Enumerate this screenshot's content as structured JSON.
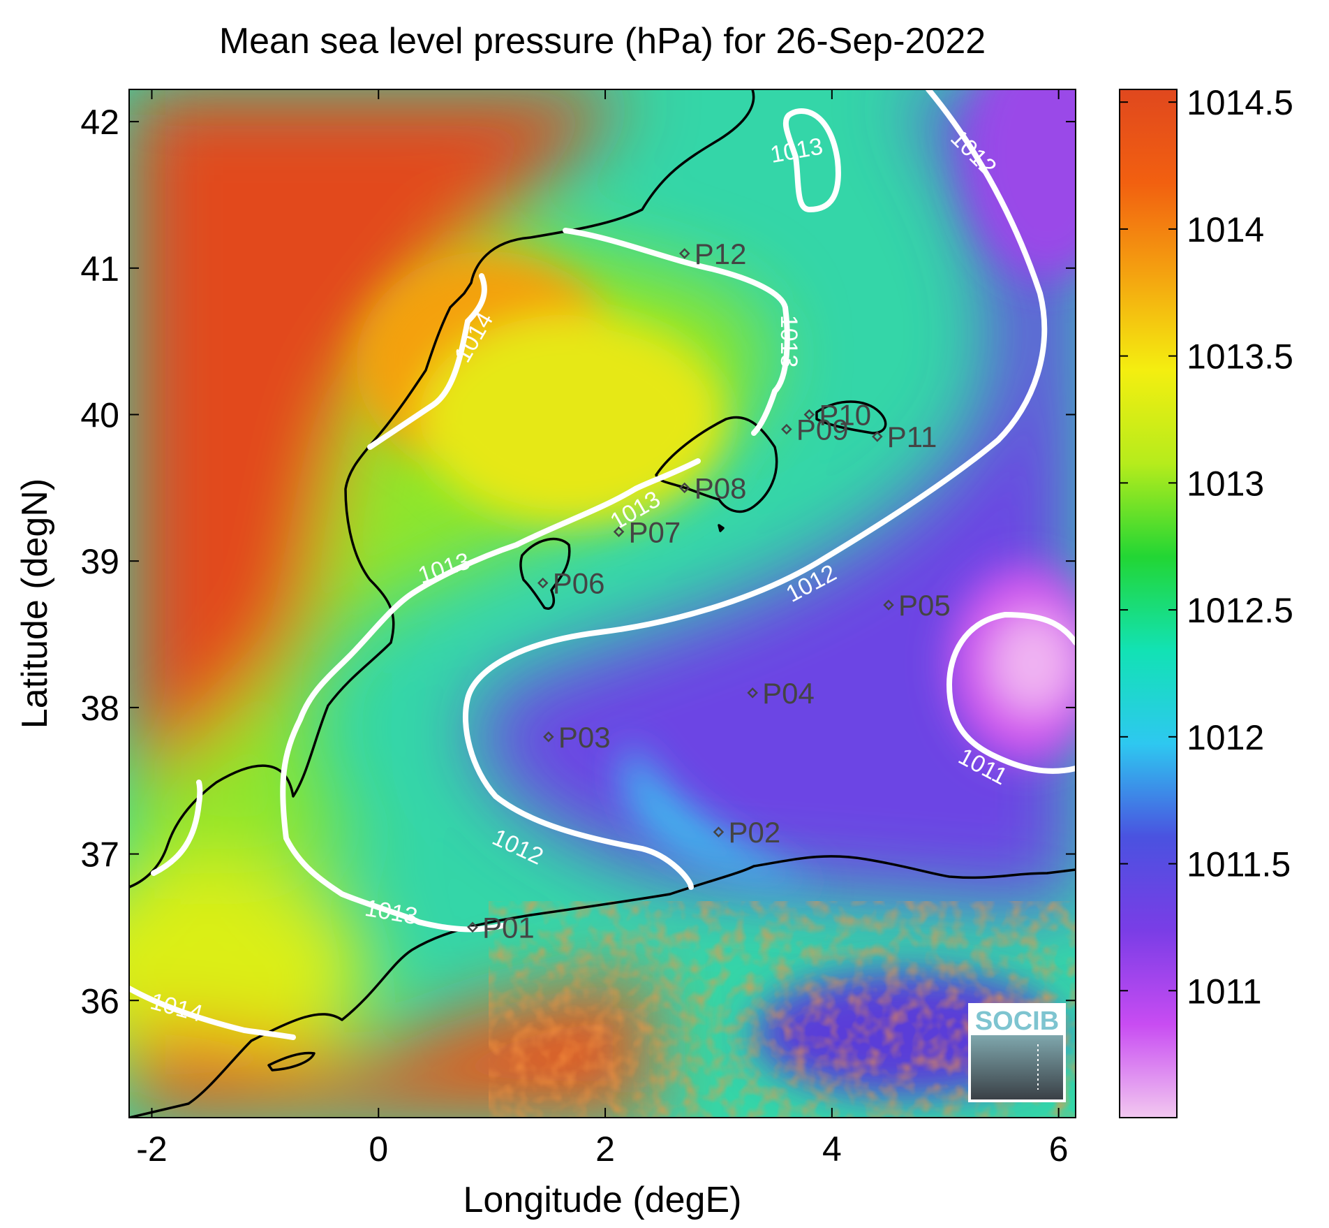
{
  "chart_data": {
    "type": "heatmap",
    "title": "Mean sea level pressure (hPa) for 26-Sep-2022",
    "xlabel": "Longitude (degE)",
    "ylabel": "Latitude (degN)",
    "xlim": [
      -2.2,
      6.15
    ],
    "ylim": [
      35.2,
      42.22
    ],
    "x_ticks": [
      -2,
      0,
      2,
      4,
      6
    ],
    "y_ticks": [
      36,
      37,
      38,
      39,
      40,
      41,
      42
    ],
    "x_tick_labels": [
      "-2",
      "0",
      "2",
      "4",
      "6"
    ],
    "y_tick_labels": [
      "36",
      "37",
      "38",
      "39",
      "40",
      "41",
      "42"
    ],
    "grid": false,
    "colorbar": {
      "label_position": "right",
      "range": [
        1010.5,
        1014.55
      ],
      "ticks": [
        1011,
        1011.5,
        1012,
        1012.5,
        1013,
        1013.5,
        1014,
        1014.5
      ],
      "tick_labels": [
        "1011",
        "1011.5",
        "1012",
        "1012.5",
        "1013",
        "1013.5",
        "1014",
        "1014.5"
      ],
      "colors": [
        "#f2c8f0",
        "#c84cf2",
        "#7a3de6",
        "#4a52e0",
        "#2ec8f0",
        "#12e2b4",
        "#22d634",
        "#b6ec1c",
        "#f4ee10",
        "#f4a410",
        "#f26010",
        "#e0481e"
      ]
    },
    "stations": [
      {
        "name": "P01",
        "lon": 0.83,
        "lat": 36.5
      },
      {
        "name": "P02",
        "lon": 3.0,
        "lat": 37.15
      },
      {
        "name": "P03",
        "lon": 1.5,
        "lat": 37.8
      },
      {
        "name": "P04",
        "lon": 3.3,
        "lat": 38.1
      },
      {
        "name": "P05",
        "lon": 4.5,
        "lat": 38.7
      },
      {
        "name": "P06",
        "lon": 1.45,
        "lat": 38.85
      },
      {
        "name": "P07",
        "lon": 2.12,
        "lat": 39.2
      },
      {
        "name": "P08",
        "lon": 2.7,
        "lat": 39.5
      },
      {
        "name": "P09",
        "lon": 3.6,
        "lat": 39.9
      },
      {
        "name": "P10",
        "lon": 3.8,
        "lat": 40.0
      },
      {
        "name": "P11",
        "lon": 4.4,
        "lat": 39.85
      },
      {
        "name": "P12",
        "lon": 2.7,
        "lat": 41.1
      }
    ],
    "contour_labels": [
      {
        "text": "1013",
        "lon": 3.7,
        "lat": 41.75,
        "angle": -10
      },
      {
        "text": "1012",
        "lon": 5.2,
        "lat": 41.75,
        "angle": 45
      },
      {
        "text": "1014",
        "lon": 0.9,
        "lat": 40.5,
        "angle": -60
      },
      {
        "text": "1013",
        "lon": 3.55,
        "lat": 40.5,
        "angle": 90
      },
      {
        "text": "1013",
        "lon": 2.3,
        "lat": 39.3,
        "angle": -30
      },
      {
        "text": "1013",
        "lon": 0.6,
        "lat": 38.9,
        "angle": -18
      },
      {
        "text": "1012",
        "lon": 3.85,
        "lat": 38.8,
        "angle": -28
      },
      {
        "text": "1011",
        "lon": 5.3,
        "lat": 37.55,
        "angle": 28
      },
      {
        "text": "1012",
        "lon": 1.2,
        "lat": 37.0,
        "angle": 25
      },
      {
        "text": "1013",
        "lon": 0.1,
        "lat": 36.55,
        "angle": 10
      },
      {
        "text": "1014",
        "lon": -1.8,
        "lat": 35.9,
        "angle": 15
      }
    ],
    "logo_text": "SOCIB"
  }
}
